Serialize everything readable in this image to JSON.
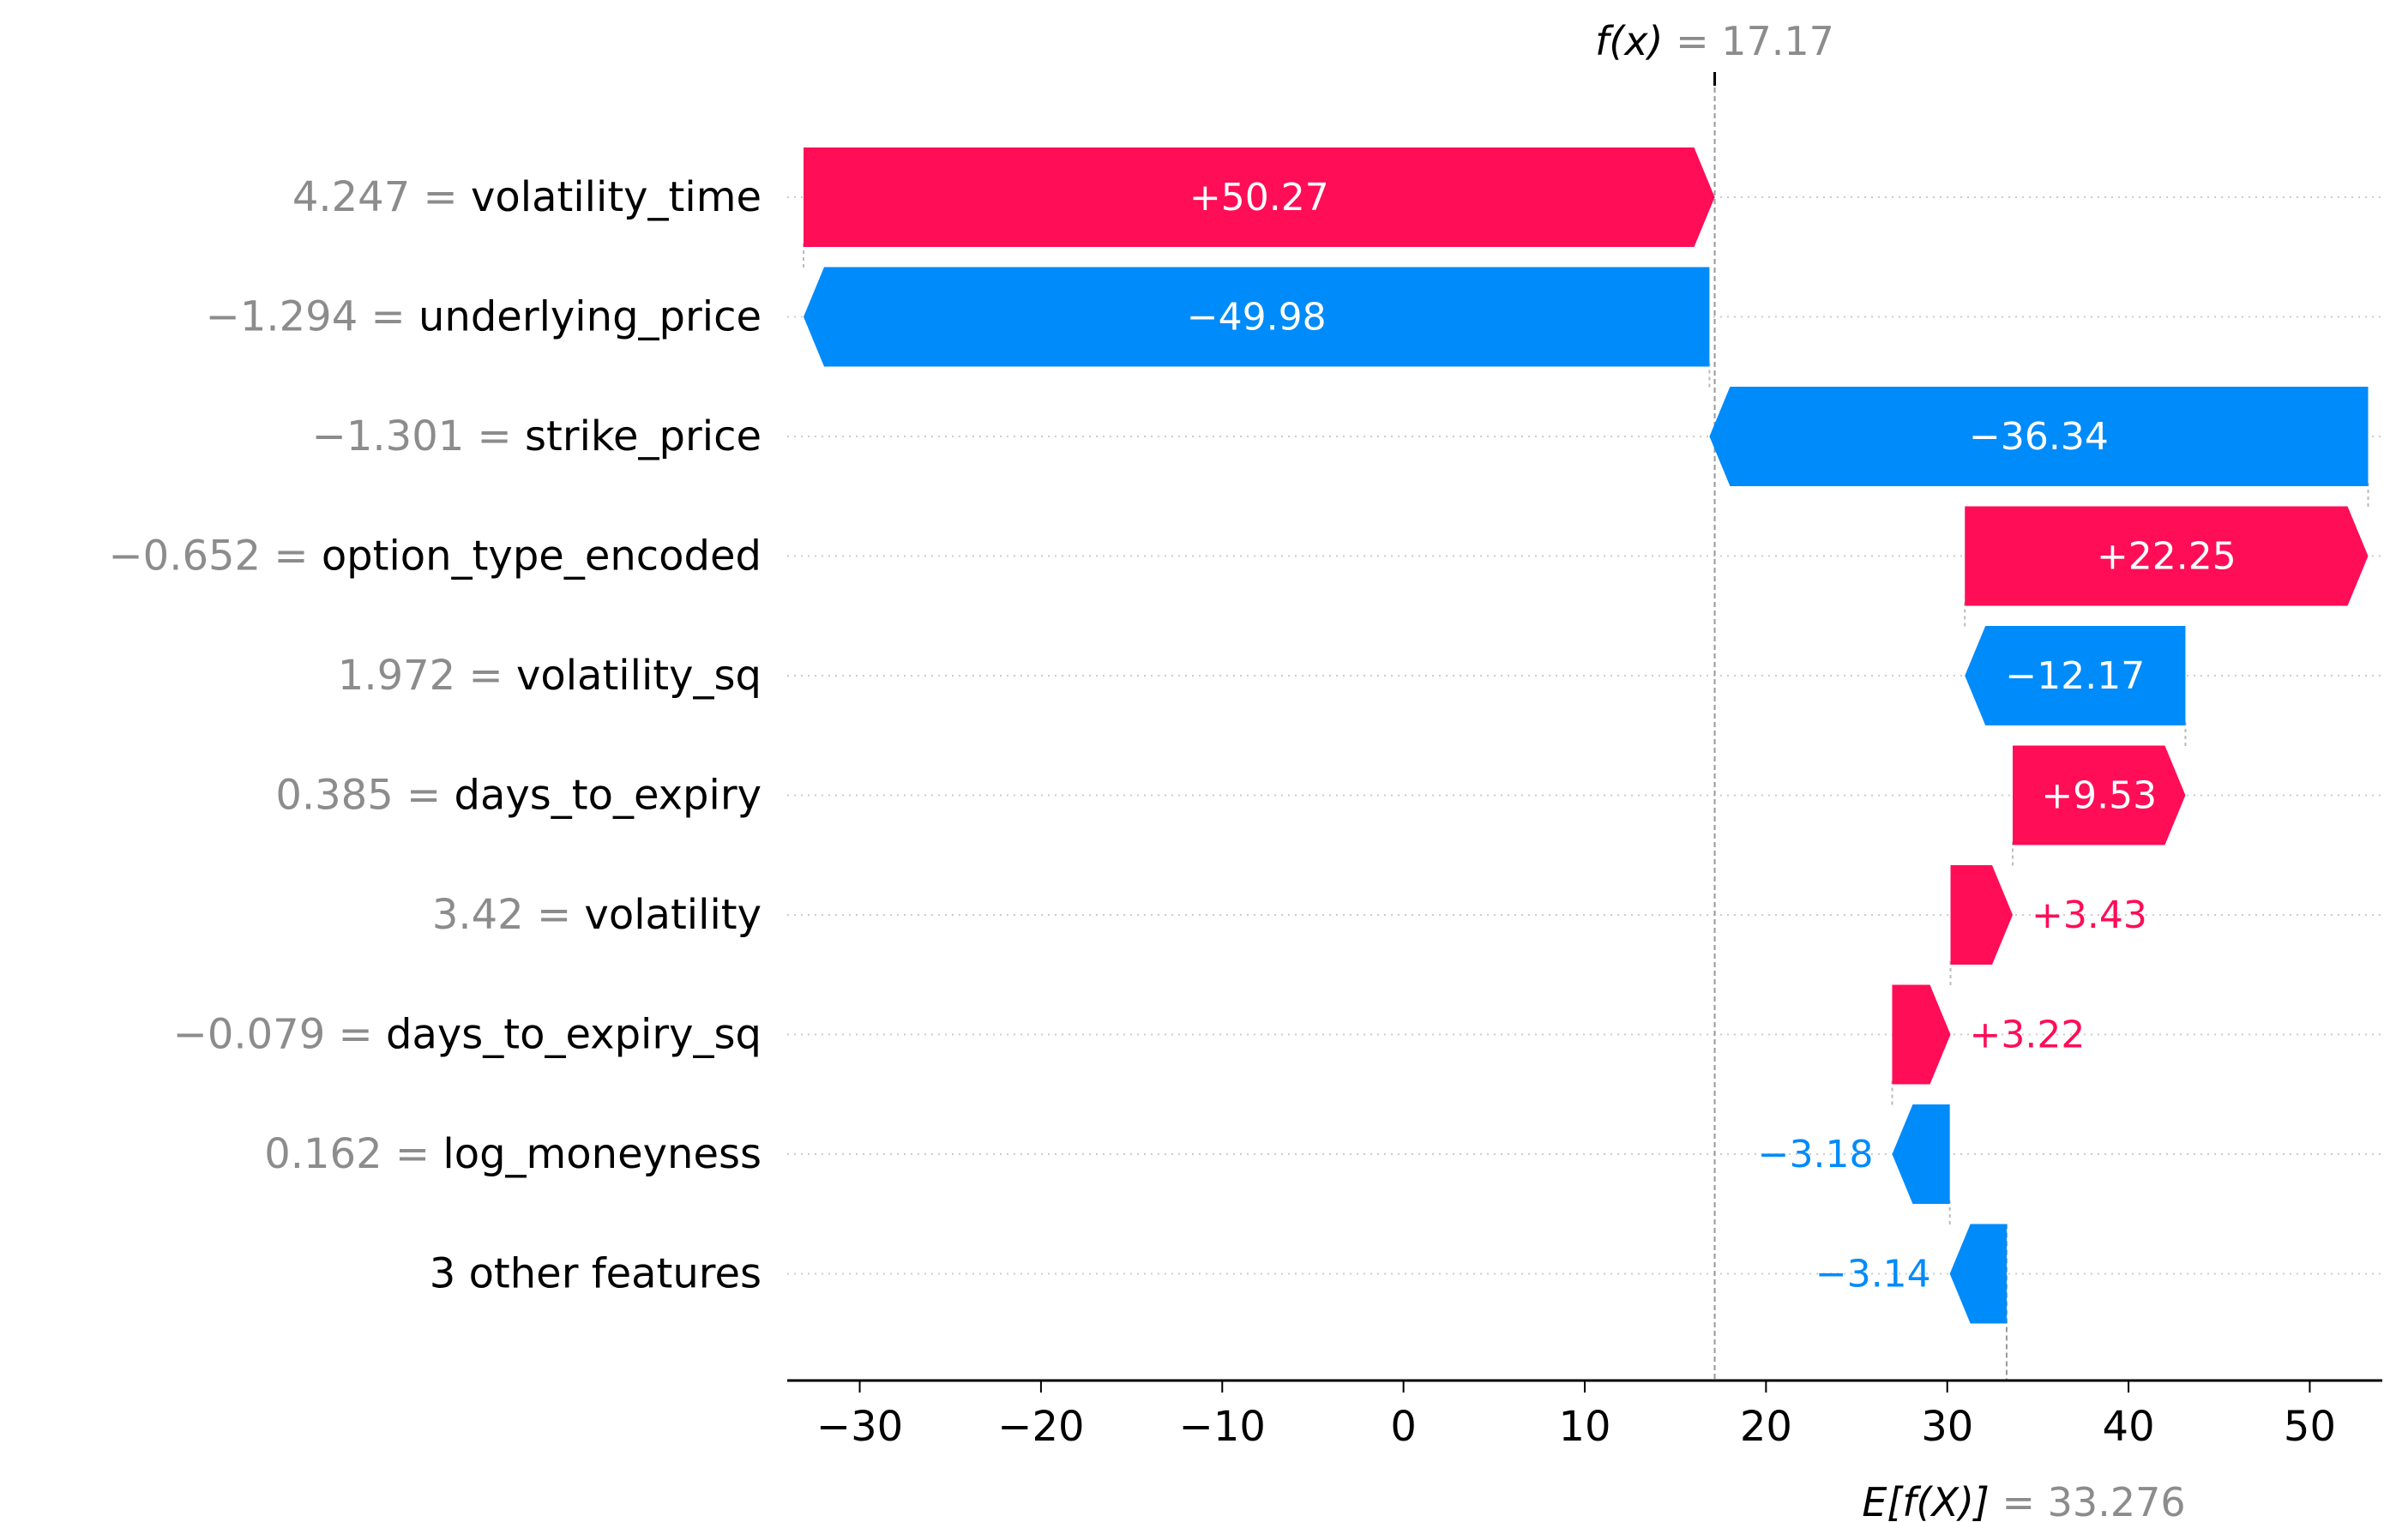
{
  "chart_data": {
    "type": "waterfall",
    "fx": {
      "name": "f(x)",
      "value": 17.17,
      "text": "17.17"
    },
    "base": {
      "name": "E[f(X)]",
      "value": 33.276,
      "text": "33.276"
    },
    "xticks": [
      -30,
      -20,
      -10,
      0,
      10,
      20,
      30,
      40,
      50
    ],
    "xtick_labels": [
      "−30",
      "−20",
      "−10",
      "0",
      "10",
      "20",
      "30",
      "40",
      "50"
    ],
    "xlim": [
      -34,
      54
    ],
    "features": [
      {
        "value_text": "4.247",
        "name": "volatility_time",
        "contribution": 50.27,
        "label": "+50.27"
      },
      {
        "value_text": "−1.294",
        "name": "underlying_price",
        "contribution": -49.98,
        "label": "−49.98"
      },
      {
        "value_text": "−1.301",
        "name": "strike_price",
        "contribution": -36.34,
        "label": "−36.34"
      },
      {
        "value_text": "−0.652",
        "name": "option_type_encoded",
        "contribution": 22.25,
        "label": "+22.25"
      },
      {
        "value_text": "1.972",
        "name": "volatility_sq",
        "contribution": -12.17,
        "label": "−12.17"
      },
      {
        "value_text": "0.385",
        "name": "days_to_expiry",
        "contribution": 9.53,
        "label": "+9.53"
      },
      {
        "value_text": "3.42",
        "name": "volatility",
        "contribution": 3.43,
        "label": "+3.43"
      },
      {
        "value_text": "−0.079",
        "name": "days_to_expiry_sq",
        "contribution": 3.22,
        "label": "+3.22"
      },
      {
        "value_text": "0.162",
        "name": "log_moneyness",
        "contribution": -3.18,
        "label": "−3.18"
      },
      {
        "value_text": "",
        "name": "3 other features",
        "contribution": -3.14,
        "label": "−3.14"
      }
    ],
    "colors": {
      "positive": "#ff0d57",
      "negative": "#008bfb",
      "value_label": "#8c8c8c",
      "text": "#000000",
      "grid": "#cccccc"
    }
  }
}
